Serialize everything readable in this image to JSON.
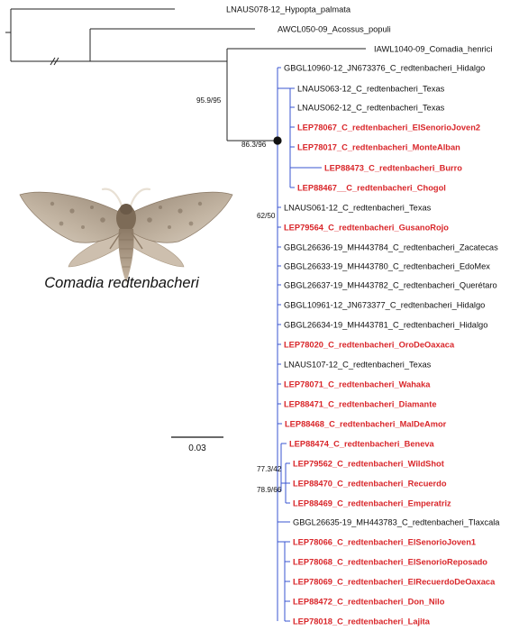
{
  "figure": {
    "species_caption": "Comadia redtenbacheri",
    "scale_bar_label": "0.03",
    "colors": {
      "highlight": "#d9262a",
      "ingroup_branch": "#3a55d0",
      "outgroup_branch": "#222222"
    }
  },
  "tips": [
    {
      "label": "LNAUS078-12_Hypopta_palmata",
      "highlight": false
    },
    {
      "label": "AWCL050-09_Acossus_populi",
      "highlight": false
    },
    {
      "label": "IAWL1040-09_Comadia_henrici",
      "highlight": false
    },
    {
      "label": "GBGL10960-12_JN673376_C_redtenbacheri_Hidalgo",
      "highlight": false
    },
    {
      "label": "LNAUS063-12_C_redtenbacheri_Texas",
      "highlight": false
    },
    {
      "label": "LNAUS062-12_C_redtenbacheri_Texas",
      "highlight": false
    },
    {
      "label": "LEP78067_C_redtenbacheri_ElSenorioJoven2",
      "highlight": true
    },
    {
      "label": "LEP78017_C_redtenbacheri_MonteAlban",
      "highlight": true
    },
    {
      "label": "LEP88473_C_redtenbacheri_Burro",
      "highlight": true
    },
    {
      "label": "LEP88467__C_redtenbacheri_Chogol",
      "highlight": true
    },
    {
      "label": "LNAUS061-12_C_redtenbacheri_Texas",
      "highlight": false
    },
    {
      "label": "LEP79564_C_redtenbacheri_GusanoRojo",
      "highlight": true
    },
    {
      "label": "GBGL26636-19_MH443784_C_redtenbacheri_Zacatecas",
      "highlight": false
    },
    {
      "label": "GBGL26633-19_MH443780_C_redtenbacheri_EdoMex",
      "highlight": false
    },
    {
      "label": "GBGL26637-19_MH443782_C_redtenbacheri_Querétaro",
      "highlight": false
    },
    {
      "label": "GBGL10961-12_JN673377_C_redtenbacheri_Hidalgo",
      "highlight": false
    },
    {
      "label": "GBGL26634-19_MH443781_C_redtenbacheri_Hidalgo",
      "highlight": false
    },
    {
      "label": "LEP78020_C_redtenbacheri_OroDeOaxaca",
      "highlight": true
    },
    {
      "label": "LNAUS107-12_C_redtenbacheri_Texas",
      "highlight": false
    },
    {
      "label": "LEP78071_C_redtenbacheri_Wahaka",
      "highlight": true
    },
    {
      "label": "LEP88471_C_redtenbacheri_Diamante",
      "highlight": true
    },
    {
      "label": "LEP88468_C_redtenbacheri_MalDeAmor",
      "highlight": true
    },
    {
      "label": "LEP88474_C_redtenbacheri_Beneva",
      "highlight": true
    },
    {
      "label": "LEP79562_C_redtenbacheri_WildShot",
      "highlight": true
    },
    {
      "label": "LEP88470_C_redtenbacheri_Recuerdo",
      "highlight": true
    },
    {
      "label": "LEP88469_C_redtenbacheri_Emperatriz",
      "highlight": true
    },
    {
      "label": "GBGL26635-19_MH443783_C_redtenbacheri_Tlaxcala",
      "highlight": false
    },
    {
      "label": "LEP78066_C_redtenbacheri_ElSenorioJoven1",
      "highlight": true
    },
    {
      "label": "LEP78068_C_redtenbacheri_ElSenorioReposado",
      "highlight": true
    },
    {
      "label": "LEP78069_C_redtenbacheri_ElRecuerdoDeOaxaca",
      "highlight": true
    },
    {
      "label": "LEP88472_C_redtenbacheri_Don_Nilo",
      "highlight": true
    },
    {
      "label": "LEP78018_C_redtenbacheri_Lajita",
      "highlight": true
    }
  ],
  "support_values": [
    {
      "node": "comadia",
      "label": "95.9/95"
    },
    {
      "node": "redtenbacheri",
      "label": "86.3/96"
    },
    {
      "node": "subclade-a",
      "label": "62/50"
    },
    {
      "node": "subclade-b",
      "label": "77.3/42"
    },
    {
      "node": "subclade-c",
      "label": "78.9/66"
    }
  ]
}
